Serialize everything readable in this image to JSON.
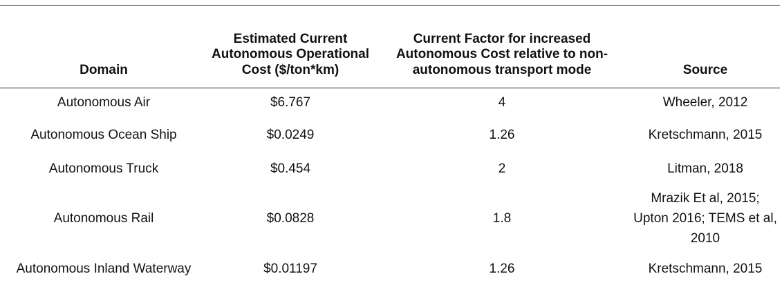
{
  "table": {
    "headers": [
      "Domain",
      "Estimated Current Autonomous Operational Cost ($/ton*km)",
      "Current Factor for increased Autonomous Cost relative to non-autonomous transport mode",
      "Source"
    ],
    "rows": [
      {
        "domain": "Autonomous Air",
        "cost": "$6.767",
        "factor": "4",
        "source": "Wheeler, 2012"
      },
      {
        "domain": "Autonomous Ocean Ship",
        "cost": "$0.0249",
        "factor": "1.26",
        "source": "Kretschmann, 2015"
      },
      {
        "domain": "Autonomous Truck",
        "cost": "$0.454",
        "factor": "2",
        "source": "Litman, 2018"
      },
      {
        "domain": "Autonomous Rail",
        "cost": "$0.0828",
        "factor": "1.8",
        "source": "Mrazik Et al, 2015; Upton 2016; TEMS et al, 2010"
      },
      {
        "domain": "Autonomous Inland Waterway",
        "cost": "$0.01197",
        "factor": "1.26",
        "source": "Kretschmann, 2015"
      }
    ]
  }
}
